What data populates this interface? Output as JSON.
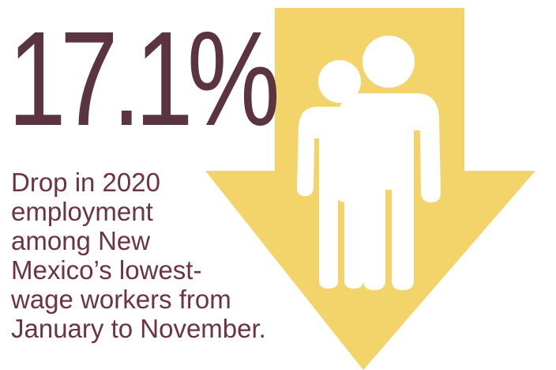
{
  "stat": {
    "value": "17.1%",
    "caption": "Drop in 2020\nemployment\namong New\nMexico’s lowest-\nwage workers from\nJanuary to November."
  },
  "graphic": {
    "arrow_icon": "down-arrow-icon",
    "people_icon": "two-people-icon"
  },
  "colors": {
    "stat_text": "#5c3340",
    "caption_text": "#6b3344",
    "arrow_fill": "#f2d46b",
    "people_fill": "#ffffff"
  }
}
